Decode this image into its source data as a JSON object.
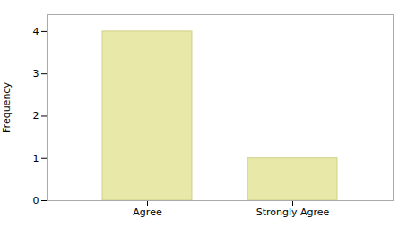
{
  "chart_data": {
    "type": "bar",
    "categories": [
      "Agree",
      "Strongly Agree"
    ],
    "values": [
      4,
      1
    ],
    "color": "#e8e8a8",
    "ylabel": "Frequency",
    "ylim": [
      0,
      4.4
    ],
    "yticks": [
      0,
      1,
      2,
      3,
      4
    ],
    "grid": false
  }
}
